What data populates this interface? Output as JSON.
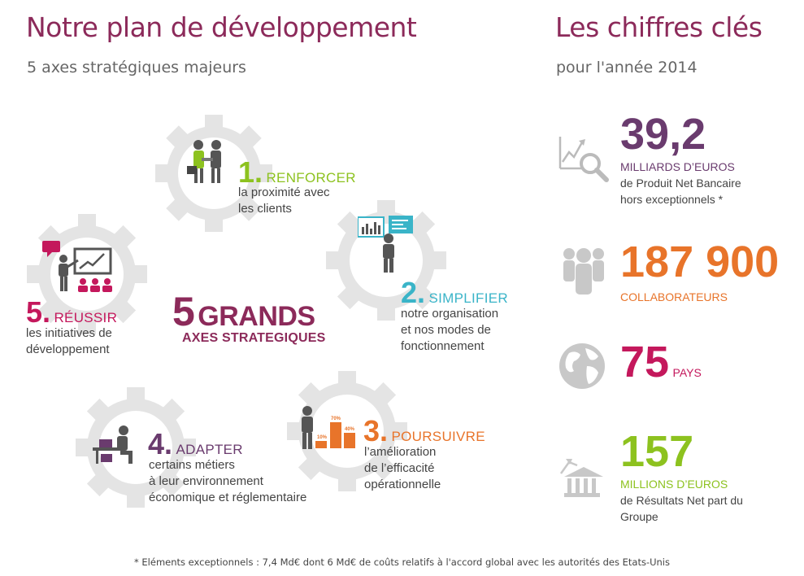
{
  "left": {
    "title": "Notre plan de développement",
    "subtitle": "5 axes stratégiques majeurs",
    "center": {
      "number": "5",
      "word": "GRANDS",
      "line2": "AXES STRATEGIQUES"
    },
    "axes": [
      {
        "num": "1.",
        "word": "RENFORCER",
        "line1": "la proximité avec",
        "line2": "les clients",
        "line3": "",
        "icon": "handshake-icon",
        "color": "#8dc21f"
      },
      {
        "num": "2.",
        "word": "SIMPLIFIER",
        "line1": "notre organisation",
        "line2": "et nos modes de",
        "line3": "fonctionnement",
        "icon": "presenter-screen-icon",
        "color": "#3ab4c8"
      },
      {
        "num": "3.",
        "word": "POURSUIVRE",
        "line1": "l’amélioration",
        "line2": "de l’efficacité",
        "line3": "opérationnelle",
        "icon": "growth-chart-icon",
        "color": "#e8742a",
        "chart_labels": [
          "10%",
          "70%",
          "40%"
        ]
      },
      {
        "num": "4.",
        "word": "ADAPTER",
        "line1": "certains métiers",
        "line2": "à leur environnement",
        "line3": "économique et réglementaire",
        "icon": "desk-worker-icon",
        "color": "#6a3b6e"
      },
      {
        "num": "5.",
        "word": "RÉUSSIR",
        "line1": "les initiatives de",
        "line2": "développement",
        "line3": "",
        "icon": "presentation-board-icon",
        "color": "#c4185c"
      }
    ]
  },
  "right": {
    "title": "Les chiffres clés",
    "subtitle": "pour l'année 2014",
    "figures": [
      {
        "value": "39,2",
        "label1": "MILLIARDS D’EUROS",
        "label2": "de Produit Net Bancaire",
        "label3": "hors exceptionnels *",
        "color": "#6a3b6e",
        "icon": "magnifier-chart-icon"
      },
      {
        "value": "187 900",
        "label1": "COLLABORATEURS",
        "color": "#e8742a",
        "icon": "people-group-icon"
      },
      {
        "value": "75",
        "label1": "PAYS",
        "color": "#c4185c",
        "icon": "globe-icon"
      },
      {
        "value": "157",
        "label1": "MILLIONS D’EUROS",
        "label2": "de Résultats Net part du",
        "label3": "Groupe",
        "color": "#8dc21f",
        "icon": "bank-icon"
      }
    ]
  },
  "footnote": "* Eléments exceptionnels : 7,4 Md€ dont 6 Md€ de coûts relatifs à l'accord global avec les autorités des Etats-Unis"
}
